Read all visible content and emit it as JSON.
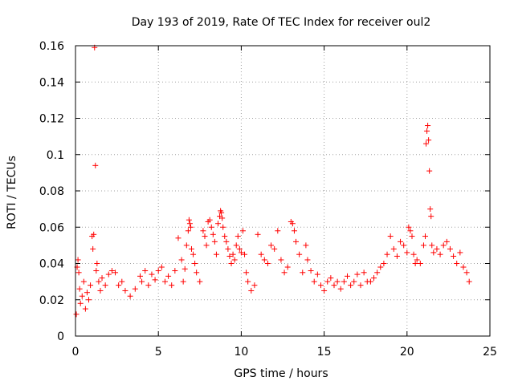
{
  "chart_data": {
    "type": "scatter",
    "title": "Day 193 of 2019, Rate Of TEC Index for receiver oul2",
    "xlabel": "GPS time / hours",
    "ylabel": "ROTI / TECUs",
    "xlim": [
      0,
      25
    ],
    "ylim": [
      0,
      0.16
    ],
    "x_ticks": [
      0,
      5,
      10,
      15,
      20,
      25
    ],
    "x_tick_labels": [
      "0",
      "5",
      "10",
      "15",
      "20",
      "25"
    ],
    "y_ticks": [
      0,
      0.02,
      0.04,
      0.06,
      0.08,
      0.1,
      0.12,
      0.14,
      0.16
    ],
    "y_tick_labels": [
      "0",
      "0.02",
      "0.04",
      "0.06",
      "0.08",
      "0.1",
      "0.12",
      "0.14",
      "0.16"
    ],
    "grid": true,
    "marker": "+",
    "color": "#ff0000",
    "series": [
      {
        "name": "ROTI",
        "points": [
          [
            0.05,
            0.012
          ],
          [
            0.1,
            0.038
          ],
          [
            0.15,
            0.042
          ],
          [
            0.2,
            0.035
          ],
          [
            0.25,
            0.026
          ],
          [
            0.3,
            0.018
          ],
          [
            0.4,
            0.022
          ],
          [
            0.5,
            0.03
          ],
          [
            0.6,
            0.015
          ],
          [
            0.7,
            0.024
          ],
          [
            0.8,
            0.02
          ],
          [
            0.9,
            0.028
          ],
          [
            1.0,
            0.055
          ],
          [
            1.05,
            0.048
          ],
          [
            1.1,
            0.056
          ],
          [
            1.15,
            0.159
          ],
          [
            1.2,
            0.094
          ],
          [
            1.25,
            0.036
          ],
          [
            1.3,
            0.04
          ],
          [
            1.4,
            0.03
          ],
          [
            1.5,
            0.025
          ],
          [
            1.6,
            0.032
          ],
          [
            1.8,
            0.028
          ],
          [
            2.0,
            0.034
          ],
          [
            2.2,
            0.036
          ],
          [
            2.4,
            0.035
          ],
          [
            2.6,
            0.028
          ],
          [
            2.8,
            0.03
          ],
          [
            3.0,
            0.025
          ],
          [
            3.3,
            0.022
          ],
          [
            3.6,
            0.026
          ],
          [
            3.9,
            0.033
          ],
          [
            4.0,
            0.03
          ],
          [
            4.2,
            0.036
          ],
          [
            4.4,
            0.028
          ],
          [
            4.6,
            0.034
          ],
          [
            4.8,
            0.031
          ],
          [
            5.0,
            0.036
          ],
          [
            5.2,
            0.038
          ],
          [
            5.4,
            0.03
          ],
          [
            5.6,
            0.033
          ],
          [
            5.8,
            0.028
          ],
          [
            6.0,
            0.036
          ],
          [
            6.2,
            0.054
          ],
          [
            6.4,
            0.042
          ],
          [
            6.5,
            0.03
          ],
          [
            6.6,
            0.037
          ],
          [
            6.7,
            0.05
          ],
          [
            6.8,
            0.058
          ],
          [
            6.85,
            0.064
          ],
          [
            6.9,
            0.062
          ],
          [
            6.95,
            0.06
          ],
          [
            7.0,
            0.048
          ],
          [
            7.1,
            0.045
          ],
          [
            7.2,
            0.04
          ],
          [
            7.3,
            0.035
          ],
          [
            7.5,
            0.03
          ],
          [
            7.7,
            0.058
          ],
          [
            7.8,
            0.055
          ],
          [
            7.9,
            0.05
          ],
          [
            8.0,
            0.063
          ],
          [
            8.1,
            0.064
          ],
          [
            8.2,
            0.06
          ],
          [
            8.3,
            0.056
          ],
          [
            8.4,
            0.052
          ],
          [
            8.5,
            0.045
          ],
          [
            8.6,
            0.062
          ],
          [
            8.7,
            0.066
          ],
          [
            8.75,
            0.069
          ],
          [
            8.8,
            0.068
          ],
          [
            8.85,
            0.065
          ],
          [
            8.9,
            0.06
          ],
          [
            9.0,
            0.055
          ],
          [
            9.1,
            0.052
          ],
          [
            9.2,
            0.048
          ],
          [
            9.3,
            0.044
          ],
          [
            9.4,
            0.04
          ],
          [
            9.5,
            0.045
          ],
          [
            9.6,
            0.042
          ],
          [
            9.7,
            0.05
          ],
          [
            9.8,
            0.055
          ],
          [
            9.9,
            0.048
          ],
          [
            10.0,
            0.046
          ],
          [
            10.1,
            0.058
          ],
          [
            10.2,
            0.045
          ],
          [
            10.3,
            0.035
          ],
          [
            10.4,
            0.03
          ],
          [
            10.6,
            0.025
          ],
          [
            10.8,
            0.028
          ],
          [
            11.0,
            0.056
          ],
          [
            11.2,
            0.045
          ],
          [
            11.4,
            0.042
          ],
          [
            11.6,
            0.04
          ],
          [
            11.8,
            0.05
          ],
          [
            12.0,
            0.048
          ],
          [
            12.2,
            0.058
          ],
          [
            12.4,
            0.042
          ],
          [
            12.6,
            0.035
          ],
          [
            12.8,
            0.038
          ],
          [
            13.0,
            0.063
          ],
          [
            13.1,
            0.062
          ],
          [
            13.2,
            0.058
          ],
          [
            13.3,
            0.052
          ],
          [
            13.5,
            0.045
          ],
          [
            13.7,
            0.035
          ],
          [
            13.9,
            0.05
          ],
          [
            14.0,
            0.042
          ],
          [
            14.2,
            0.036
          ],
          [
            14.4,
            0.03
          ],
          [
            14.6,
            0.034
          ],
          [
            14.8,
            0.028
          ],
          [
            15.0,
            0.025
          ],
          [
            15.2,
            0.03
          ],
          [
            15.4,
            0.032
          ],
          [
            15.6,
            0.028
          ],
          [
            15.8,
            0.03
          ],
          [
            16.0,
            0.026
          ],
          [
            16.2,
            0.03
          ],
          [
            16.4,
            0.033
          ],
          [
            16.6,
            0.028
          ],
          [
            16.8,
            0.03
          ],
          [
            17.0,
            0.034
          ],
          [
            17.2,
            0.028
          ],
          [
            17.4,
            0.035
          ],
          [
            17.6,
            0.03
          ],
          [
            17.8,
            0.03
          ],
          [
            18.0,
            0.032
          ],
          [
            18.2,
            0.035
          ],
          [
            18.4,
            0.038
          ],
          [
            18.6,
            0.04
          ],
          [
            18.8,
            0.045
          ],
          [
            19.0,
            0.055
          ],
          [
            19.2,
            0.048
          ],
          [
            19.4,
            0.044
          ],
          [
            19.6,
            0.052
          ],
          [
            19.8,
            0.05
          ],
          [
            20.0,
            0.046
          ],
          [
            20.1,
            0.06
          ],
          [
            20.2,
            0.058
          ],
          [
            20.3,
            0.055
          ],
          [
            20.4,
            0.045
          ],
          [
            20.5,
            0.04
          ],
          [
            20.6,
            0.042
          ],
          [
            20.8,
            0.04
          ],
          [
            21.0,
            0.05
          ],
          [
            21.1,
            0.055
          ],
          [
            21.15,
            0.106
          ],
          [
            21.2,
            0.113
          ],
          [
            21.25,
            0.116
          ],
          [
            21.3,
            0.108
          ],
          [
            21.35,
            0.091
          ],
          [
            21.4,
            0.07
          ],
          [
            21.45,
            0.066
          ],
          [
            21.5,
            0.05
          ],
          [
            21.6,
            0.046
          ],
          [
            21.8,
            0.048
          ],
          [
            22.0,
            0.045
          ],
          [
            22.2,
            0.05
          ],
          [
            22.4,
            0.052
          ],
          [
            22.6,
            0.048
          ],
          [
            22.8,
            0.044
          ],
          [
            23.0,
            0.04
          ],
          [
            23.2,
            0.046
          ],
          [
            23.4,
            0.038
          ],
          [
            23.6,
            0.035
          ],
          [
            23.75,
            0.03
          ]
        ]
      }
    ]
  }
}
